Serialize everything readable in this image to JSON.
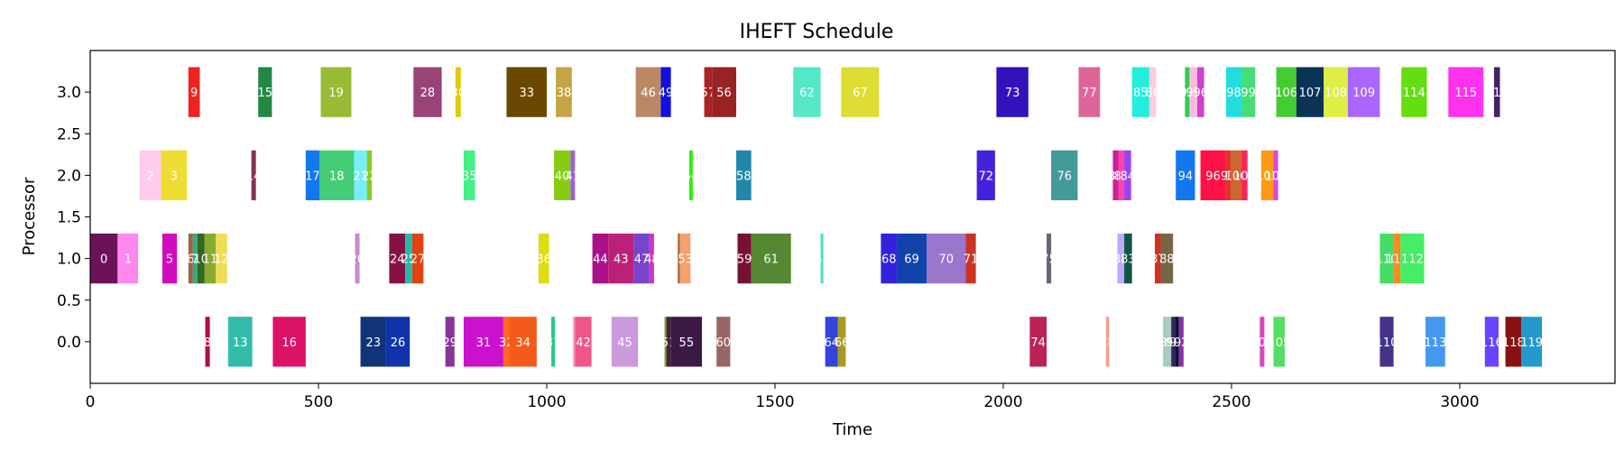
{
  "chart_data": {
    "type": "gantt",
    "title": "IHEFT Schedule",
    "xlabel": "Time",
    "ylabel": "Processor",
    "xlim": [
      0,
      3340
    ],
    "ylim": [
      -0.5,
      3.5
    ],
    "xticks": [
      0,
      500,
      1000,
      1500,
      2000,
      2500,
      3000
    ],
    "yticks": [
      0.0,
      0.5,
      1.0,
      1.5,
      2.0,
      2.5,
      3.0
    ],
    "ytick_labels": [
      "0.0",
      "0.5",
      "1.0",
      "1.5",
      "2.0",
      "2.5",
      "3.0"
    ],
    "xtick_labels": [
      "0",
      "500",
      "1000",
      "1500",
      "2000",
      "2500",
      "3000"
    ],
    "bar_height": 0.6,
    "grid": false,
    "tasks": [
      {
        "id": "0",
        "processor": 1,
        "start": 0,
        "end": 60,
        "color": "#6b1259"
      },
      {
        "id": "1",
        "processor": 1,
        "start": 60,
        "end": 105,
        "color": "#ff88ee"
      },
      {
        "id": "5",
        "processor": 1,
        "start": 158,
        "end": 190,
        "color": "#d30bbe"
      },
      {
        "id": "6",
        "processor": 1,
        "start": 215,
        "end": 225,
        "color": "#996644"
      },
      {
        "id": "7",
        "processor": 1,
        "start": 225,
        "end": 235,
        "color": "#33aa88"
      },
      {
        "id": "10",
        "processor": 1,
        "start": 235,
        "end": 250,
        "color": "#336622"
      },
      {
        "id": "11",
        "processor": 1,
        "start": 250,
        "end": 275,
        "color": "#88aa33"
      },
      {
        "id": "12",
        "processor": 1,
        "start": 275,
        "end": 300,
        "color": "#eedd55"
      },
      {
        "id": "20",
        "processor": 1,
        "start": 580,
        "end": 590,
        "color": "#cc88cc"
      },
      {
        "id": "24",
        "processor": 1,
        "start": 655,
        "end": 690,
        "color": "#881144"
      },
      {
        "id": "25",
        "processor": 1,
        "start": 690,
        "end": 705,
        "color": "#22bbaa"
      },
      {
        "id": "27",
        "processor": 1,
        "start": 705,
        "end": 730,
        "color": "#dd4411"
      },
      {
        "id": "36",
        "processor": 1,
        "start": 982,
        "end": 1005,
        "color": "#dddd11"
      },
      {
        "id": "44",
        "processor": 1,
        "start": 1100,
        "end": 1135,
        "color": "#aa1188"
      },
      {
        "id": "43",
        "processor": 1,
        "start": 1135,
        "end": 1190,
        "color": "#bb2277"
      },
      {
        "id": "47",
        "processor": 1,
        "start": 1190,
        "end": 1225,
        "color": "#7744cc"
      },
      {
        "id": "48",
        "processor": 1,
        "start": 1225,
        "end": 1235,
        "color": "#cc33cc"
      },
      {
        "id": "52",
        "processor": 1,
        "start": 1287,
        "end": 1292,
        "color": "#aa6633"
      },
      {
        "id": "53",
        "processor": 1,
        "start": 1292,
        "end": 1315,
        "color": "#f4a070"
      },
      {
        "id": "59",
        "processor": 1,
        "start": 1418,
        "end": 1448,
        "color": "#771133"
      },
      {
        "id": "61",
        "processor": 1,
        "start": 1448,
        "end": 1535,
        "color": "#558833"
      },
      {
        "id": "63",
        "processor": 1,
        "start": 1600,
        "end": 1606,
        "color": "#44ddcc"
      },
      {
        "id": "68",
        "processor": 1,
        "start": 1732,
        "end": 1767,
        "color": "#3322dd"
      },
      {
        "id": "69",
        "processor": 1,
        "start": 1767,
        "end": 1832,
        "color": "#1144aa"
      },
      {
        "id": "70",
        "processor": 1,
        "start": 1832,
        "end": 1918,
        "color": "#9977cc"
      },
      {
        "id": "71",
        "processor": 1,
        "start": 1918,
        "end": 1940,
        "color": "#cc3322"
      },
      {
        "id": "75",
        "processor": 1,
        "start": 2095,
        "end": 2105,
        "color": "#666677"
      },
      {
        "id": "82",
        "processor": 1,
        "start": 2250,
        "end": 2265,
        "color": "#bbaaff"
      },
      {
        "id": "83",
        "processor": 1,
        "start": 2265,
        "end": 2282,
        "color": "#115544"
      },
      {
        "id": "87",
        "processor": 1,
        "start": 2332,
        "end": 2345,
        "color": "#cc3322"
      },
      {
        "id": "88",
        "processor": 1,
        "start": 2345,
        "end": 2372,
        "color": "#776644"
      },
      {
        "id": "110",
        "processor": 1,
        "start": 2825,
        "end": 2855,
        "color": "#44dd66"
      },
      {
        "id": "111",
        "processor": 1,
        "start": 2855,
        "end": 2870,
        "color": "#ff8822"
      },
      {
        "id": "112",
        "processor": 1,
        "start": 2870,
        "end": 2922,
        "color": "#44ee66"
      },
      {
        "id": "2",
        "processor": 2,
        "start": 108,
        "end": 155,
        "color": "#ffccee"
      },
      {
        "id": "3",
        "processor": 2,
        "start": 155,
        "end": 212,
        "color": "#eedd33"
      },
      {
        "id": "14",
        "processor": 2,
        "start": 353,
        "end": 363,
        "color": "#883355"
      },
      {
        "id": "17",
        "processor": 2,
        "start": 472,
        "end": 502,
        "color": "#1177ee"
      },
      {
        "id": "18",
        "processor": 2,
        "start": 502,
        "end": 578,
        "color": "#44cc77"
      },
      {
        "id": "21",
        "processor": 2,
        "start": 578,
        "end": 606,
        "color": "#77eeff"
      },
      {
        "id": "22",
        "processor": 2,
        "start": 606,
        "end": 617,
        "color": "#88cc22"
      },
      {
        "id": "35",
        "processor": 2,
        "start": 818,
        "end": 843,
        "color": "#44ee88"
      },
      {
        "id": "40",
        "processor": 2,
        "start": 1016,
        "end": 1052,
        "color": "#88cc11"
      },
      {
        "id": "41",
        "processor": 2,
        "start": 1052,
        "end": 1062,
        "color": "#9966cc"
      },
      {
        "id": "54",
        "processor": 2,
        "start": 1312,
        "end": 1320,
        "color": "#33ee11"
      },
      {
        "id": "58",
        "processor": 2,
        "start": 1415,
        "end": 1448,
        "color": "#2288aa"
      },
      {
        "id": "72",
        "processor": 2,
        "start": 1942,
        "end": 1982,
        "color": "#4422dd"
      },
      {
        "id": "76",
        "processor": 2,
        "start": 2105,
        "end": 2163,
        "color": "#449999"
      },
      {
        "id": "80",
        "processor": 2,
        "start": 2240,
        "end": 2252,
        "color": "#cc2299"
      },
      {
        "id": "81",
        "processor": 2,
        "start": 2252,
        "end": 2265,
        "color": "#ff44aa"
      },
      {
        "id": "84",
        "processor": 2,
        "start": 2265,
        "end": 2280,
        "color": "#9944ee"
      },
      {
        "id": "94",
        "processor": 2,
        "start": 2378,
        "end": 2420,
        "color": "#1177ee"
      },
      {
        "id": "96",
        "processor": 2,
        "start": 2432,
        "end": 2487,
        "color": "#ff1144"
      },
      {
        "id": "97",
        "processor": 2,
        "start": 2487,
        "end": 2498,
        "color": "#dd3322"
      },
      {
        "id": "100",
        "processor": 2,
        "start": 2498,
        "end": 2522,
        "color": "#cc6633"
      },
      {
        "id": "101",
        "processor": 2,
        "start": 2522,
        "end": 2535,
        "color": "#ff2255"
      },
      {
        "id": "103",
        "processor": 2,
        "start": 2565,
        "end": 2592,
        "color": "#ff9911"
      },
      {
        "id": "104",
        "processor": 2,
        "start": 2592,
        "end": 2602,
        "color": "#dd44dd"
      },
      {
        "id": "8",
        "processor": 0,
        "start": 252,
        "end": 262,
        "color": "#aa1144"
      },
      {
        "id": "13",
        "processor": 0,
        "start": 302,
        "end": 355,
        "color": "#33bbaa"
      },
      {
        "id": "16",
        "processor": 0,
        "start": 400,
        "end": 472,
        "color": "#dd1166"
      },
      {
        "id": "23",
        "processor": 0,
        "start": 592,
        "end": 648,
        "color": "#113377"
      },
      {
        "id": "26",
        "processor": 0,
        "start": 648,
        "end": 700,
        "color": "#1133aa"
      },
      {
        "id": "29",
        "processor": 0,
        "start": 778,
        "end": 798,
        "color": "#883399"
      },
      {
        "id": "31",
        "processor": 0,
        "start": 818,
        "end": 905,
        "color": "#cc11cc"
      },
      {
        "id": "32",
        "processor": 0,
        "start": 905,
        "end": 918,
        "color": "#ff6622"
      },
      {
        "id": "34",
        "processor": 0,
        "start": 918,
        "end": 978,
        "color": "#f45a1a"
      },
      {
        "id": "37",
        "processor": 0,
        "start": 1010,
        "end": 1018,
        "color": "#22cc88"
      },
      {
        "id": "39",
        "processor": 0,
        "start": 1058,
        "end": 1062,
        "color": "#ff88bb"
      },
      {
        "id": "42",
        "processor": 0,
        "start": 1062,
        "end": 1098,
        "color": "#ee5588"
      },
      {
        "id": "45",
        "processor": 0,
        "start": 1142,
        "end": 1200,
        "color": "#cc99dd"
      },
      {
        "id": "50",
        "processor": 0,
        "start": 1258,
        "end": 1262,
        "color": "#77aa22"
      },
      {
        "id": "51",
        "processor": 0,
        "start": 1262,
        "end": 1272,
        "color": "#442244"
      },
      {
        "id": "55",
        "processor": 0,
        "start": 1272,
        "end": 1340,
        "color": "#3a1a44"
      },
      {
        "id": "60",
        "processor": 0,
        "start": 1372,
        "end": 1402,
        "color": "#996666"
      },
      {
        "id": "64",
        "processor": 0,
        "start": 1610,
        "end": 1638,
        "color": "#3344dd"
      },
      {
        "id": "66",
        "processor": 0,
        "start": 1638,
        "end": 1655,
        "color": "#aa9922"
      },
      {
        "id": "74",
        "processor": 0,
        "start": 2058,
        "end": 2095,
        "color": "#bb2255"
      },
      {
        "id": "78",
        "processor": 0,
        "start": 2225,
        "end": 2232,
        "color": "#f4a090"
      },
      {
        "id": "89",
        "processor": 0,
        "start": 2350,
        "end": 2368,
        "color": "#aaccbb"
      },
      {
        "id": "90",
        "processor": 0,
        "start": 2368,
        "end": 2376,
        "color": "#332266"
      },
      {
        "id": "91",
        "processor": 0,
        "start": 2376,
        "end": 2385,
        "color": "#111133"
      },
      {
        "id": "92",
        "processor": 0,
        "start": 2385,
        "end": 2395,
        "color": "#8833aa"
      },
      {
        "id": "102",
        "processor": 0,
        "start": 2562,
        "end": 2572,
        "color": "#dd44bb"
      },
      {
        "id": "105",
        "processor": 0,
        "start": 2592,
        "end": 2617,
        "color": "#55dd66"
      },
      {
        "id": "110",
        "processor": 0,
        "start": 2825,
        "end": 2855,
        "color": "#443388"
      },
      {
        "id": "113",
        "processor": 0,
        "start": 2925,
        "end": 2968,
        "color": "#4499ee"
      },
      {
        "id": "116",
        "processor": 0,
        "start": 3055,
        "end": 3085,
        "color": "#6644ff"
      },
      {
        "id": "118",
        "processor": 0,
        "start": 3100,
        "end": 3135,
        "color": "#881111"
      },
      {
        "id": "119",
        "processor": 0,
        "start": 3135,
        "end": 3180,
        "color": "#2299cc"
      },
      {
        "id": "9",
        "processor": 3,
        "start": 215,
        "end": 240,
        "color": "#ee2222"
      },
      {
        "id": "15",
        "processor": 3,
        "start": 368,
        "end": 398,
        "color": "#228844"
      },
      {
        "id": "19",
        "processor": 3,
        "start": 505,
        "end": 572,
        "color": "#99bb33"
      },
      {
        "id": "28",
        "processor": 3,
        "start": 708,
        "end": 770,
        "color": "#994477"
      },
      {
        "id": "30",
        "processor": 3,
        "start": 800,
        "end": 812,
        "color": "#ddcc11"
      },
      {
        "id": "33",
        "processor": 3,
        "start": 912,
        "end": 1000,
        "color": "#6b4800"
      },
      {
        "id": "38",
        "processor": 3,
        "start": 1020,
        "end": 1055,
        "color": "#c4a444"
      },
      {
        "id": "46",
        "processor": 3,
        "start": 1195,
        "end": 1250,
        "color": "#bb8866"
      },
      {
        "id": "49",
        "processor": 3,
        "start": 1250,
        "end": 1272,
        "color": "#1111dd"
      },
      {
        "id": "57",
        "processor": 3,
        "start": 1345,
        "end": 1362,
        "color": "#aa2222"
      },
      {
        "id": "56",
        "processor": 3,
        "start": 1362,
        "end": 1415,
        "color": "#992222"
      },
      {
        "id": "62",
        "processor": 3,
        "start": 1540,
        "end": 1600,
        "color": "#55e8c8"
      },
      {
        "id": "67",
        "processor": 3,
        "start": 1645,
        "end": 1728,
        "color": "#dddd33"
      },
      {
        "id": "73",
        "processor": 3,
        "start": 1985,
        "end": 2055,
        "color": "#3311bb"
      },
      {
        "id": "77",
        "processor": 3,
        "start": 2165,
        "end": 2212,
        "color": "#dd6699"
      },
      {
        "id": "85",
        "processor": 3,
        "start": 2282,
        "end": 2320,
        "color": "#22eedd"
      },
      {
        "id": "86",
        "processor": 3,
        "start": 2320,
        "end": 2335,
        "color": "#ffccdd"
      },
      {
        "id": "93",
        "processor": 3,
        "start": 2398,
        "end": 2408,
        "color": "#33cc55"
      },
      {
        "id": "95",
        "processor": 3,
        "start": 2408,
        "end": 2425,
        "color": "#ffbbdd"
      },
      {
        "id": "96",
        "processor": 3,
        "start": 2425,
        "end": 2440,
        "color": "#cc44cc"
      },
      {
        "id": "98",
        "processor": 3,
        "start": 2488,
        "end": 2522,
        "color": "#22dddd"
      },
      {
        "id": "99",
        "processor": 3,
        "start": 2522,
        "end": 2552,
        "color": "#44dd77"
      },
      {
        "id": "106",
        "processor": 3,
        "start": 2598,
        "end": 2642,
        "color": "#44cc33"
      },
      {
        "id": "107",
        "processor": 3,
        "start": 2642,
        "end": 2702,
        "color": "#0b3355"
      },
      {
        "id": "108",
        "processor": 3,
        "start": 2702,
        "end": 2755,
        "color": "#ddee44"
      },
      {
        "id": "109",
        "processor": 3,
        "start": 2755,
        "end": 2825,
        "color": "#aa66ff"
      },
      {
        "id": "114",
        "processor": 3,
        "start": 2872,
        "end": 2928,
        "color": "#66dd11"
      },
      {
        "id": "115",
        "processor": 3,
        "start": 2975,
        "end": 3052,
        "color": "#ff33ee"
      },
      {
        "id": "117",
        "processor": 3,
        "start": 3075,
        "end": 3088,
        "color": "#442266"
      }
    ]
  }
}
